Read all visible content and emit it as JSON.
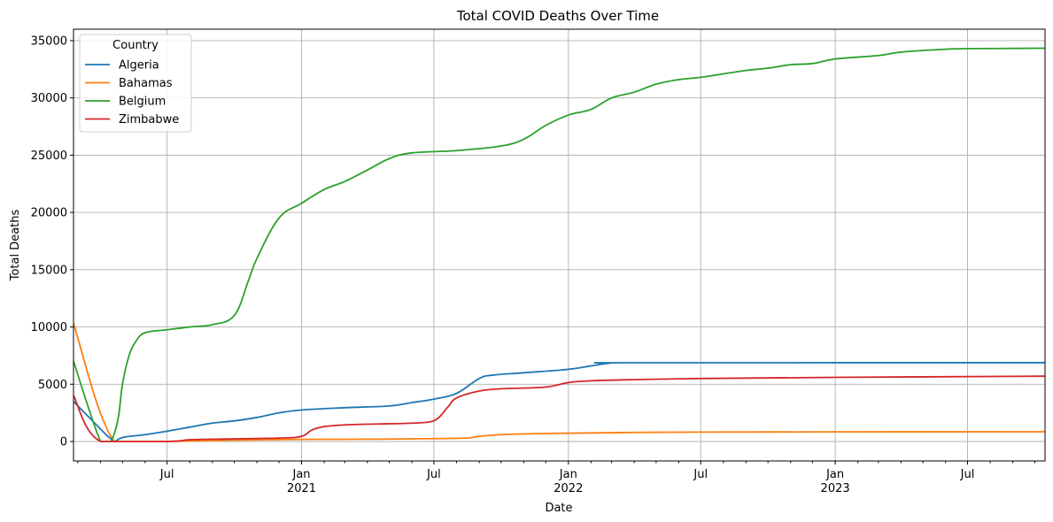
{
  "chart_data": {
    "type": "line",
    "title": "Total COVID Deaths Over Time",
    "xlabel": "Date",
    "ylabel": "Total Deaths",
    "legend": {
      "title": "Country",
      "placement": "top-left"
    },
    "grid": true,
    "xlim": [
      "2020-02-24",
      "2023-10-15"
    ],
    "ylim": [
      -1700,
      36000
    ],
    "y_ticks": [
      0,
      5000,
      10000,
      15000,
      20000,
      25000,
      30000,
      35000
    ],
    "y_tick_labels": [
      "0",
      "5000",
      "10000",
      "15000",
      "20000",
      "25000",
      "30000",
      "35000"
    ],
    "x_major_ticks": [
      {
        "date": "2020-07-01",
        "label": "Jul",
        "sublabel": ""
      },
      {
        "date": "2021-01-01",
        "label": "Jan",
        "sublabel": "2021"
      },
      {
        "date": "2021-07-01",
        "label": "Jul",
        "sublabel": ""
      },
      {
        "date": "2022-01-01",
        "label": "Jan",
        "sublabel": "2022"
      },
      {
        "date": "2022-07-01",
        "label": "Jul",
        "sublabel": ""
      },
      {
        "date": "2023-01-01",
        "label": "Jan",
        "sublabel": "2023"
      },
      {
        "date": "2023-07-01",
        "label": "Jul",
        "sublabel": ""
      }
    ],
    "x_grid_dates": [
      "2021-01-01",
      "2022-01-01",
      "2023-01-01"
    ],
    "x_minor_ticks": [
      "2020-03-01",
      "2020-04-01",
      "2020-05-01",
      "2020-06-01",
      "2020-08-01",
      "2020-09-01",
      "2020-10-01",
      "2020-11-01",
      "2020-12-01",
      "2021-02-01",
      "2021-03-01",
      "2021-04-01",
      "2021-05-01",
      "2021-06-01",
      "2021-08-01",
      "2021-09-01",
      "2021-10-01",
      "2021-11-01",
      "2021-12-01",
      "2022-02-01",
      "2022-03-01",
      "2022-04-01",
      "2022-05-01",
      "2022-06-01",
      "2022-08-01",
      "2022-09-01",
      "2022-10-01",
      "2022-11-01",
      "2022-12-01",
      "2023-02-01",
      "2023-03-01",
      "2023-04-01",
      "2023-05-01",
      "2023-06-01",
      "2023-08-01",
      "2023-09-01",
      "2023-10-01"
    ],
    "series": [
      {
        "name": "Algeria",
        "color": "#1f77b4",
        "points": [
          [
            "2020-02-24",
            3500
          ],
          [
            "2020-04-10",
            500
          ],
          [
            "2020-04-20",
            0
          ],
          [
            "2020-05-01",
            350
          ],
          [
            "2020-06-01",
            600
          ],
          [
            "2020-07-01",
            900
          ],
          [
            "2020-08-01",
            1250
          ],
          [
            "2020-09-01",
            1600
          ],
          [
            "2020-10-01",
            1800
          ],
          [
            "2020-11-01",
            2100
          ],
          [
            "2020-12-01",
            2500
          ],
          [
            "2021-01-01",
            2750
          ],
          [
            "2021-03-01",
            2950
          ],
          [
            "2021-05-01",
            3100
          ],
          [
            "2021-06-01",
            3400
          ],
          [
            "2021-07-01",
            3700
          ],
          [
            "2021-08-01",
            4200
          ],
          [
            "2021-09-01",
            5500
          ],
          [
            "2021-09-20",
            5800
          ],
          [
            "2021-11-01",
            6000
          ],
          [
            "2022-01-01",
            6300
          ],
          [
            "2022-02-01",
            6600
          ],
          [
            "2022-03-01",
            6850
          ],
          [
            "2022-04-01",
            6875
          ],
          [
            "2023-10-15",
            6880
          ]
        ]
      },
      {
        "name": "Bahamas",
        "color": "#ff7f0e",
        "points": [
          [
            "2020-02-24",
            10300
          ],
          [
            "2020-04-20",
            0
          ],
          [
            "2020-07-01",
            0
          ],
          [
            "2020-08-01",
            50
          ],
          [
            "2020-10-01",
            120
          ],
          [
            "2021-01-01",
            180
          ],
          [
            "2021-04-01",
            200
          ],
          [
            "2021-07-01",
            250
          ],
          [
            "2021-08-15",
            300
          ],
          [
            "2021-09-01",
            450
          ],
          [
            "2021-10-01",
            600
          ],
          [
            "2021-12-01",
            700
          ],
          [
            "2022-01-01",
            720
          ],
          [
            "2022-04-01",
            790
          ],
          [
            "2022-07-01",
            820
          ],
          [
            "2023-01-01",
            840
          ],
          [
            "2023-10-15",
            850
          ]
        ]
      },
      {
        "name": "Belgium",
        "color": "#2ca02c",
        "points": [
          [
            "2020-02-24",
            7000
          ],
          [
            "2020-04-01",
            0
          ],
          [
            "2020-04-15",
            0
          ],
          [
            "2020-04-25",
            2000
          ],
          [
            "2020-05-01",
            5000
          ],
          [
            "2020-05-10",
            7500
          ],
          [
            "2020-05-20",
            8800
          ],
          [
            "2020-06-01",
            9500
          ],
          [
            "2020-07-01",
            9750
          ],
          [
            "2020-08-01",
            10000
          ],
          [
            "2020-09-01",
            10200
          ],
          [
            "2020-10-01",
            11000
          ],
          [
            "2020-10-20",
            14000
          ],
          [
            "2020-11-01",
            16000
          ],
          [
            "2020-12-01",
            19500
          ],
          [
            "2021-01-01",
            20800
          ],
          [
            "2021-02-01",
            22000
          ],
          [
            "2021-03-01",
            22700
          ],
          [
            "2021-04-01",
            23700
          ],
          [
            "2021-05-01",
            24700
          ],
          [
            "2021-06-01",
            25200
          ],
          [
            "2021-08-01",
            25400
          ],
          [
            "2021-10-01",
            25800
          ],
          [
            "2021-11-01",
            26400
          ],
          [
            "2021-12-01",
            27600
          ],
          [
            "2022-01-01",
            28500
          ],
          [
            "2022-02-01",
            29000
          ],
          [
            "2022-03-01",
            30000
          ],
          [
            "2022-04-01",
            30500
          ],
          [
            "2022-05-01",
            31200
          ],
          [
            "2022-06-01",
            31600
          ],
          [
            "2022-07-01",
            31800
          ],
          [
            "2022-08-01",
            32100
          ],
          [
            "2022-09-01",
            32400
          ],
          [
            "2022-10-01",
            32600
          ],
          [
            "2022-11-01",
            32900
          ],
          [
            "2022-12-01",
            33000
          ],
          [
            "2023-01-01",
            33400
          ],
          [
            "2023-03-01",
            33700
          ],
          [
            "2023-04-01",
            34000
          ],
          [
            "2023-06-01",
            34250
          ],
          [
            "2023-07-01",
            34300
          ],
          [
            "2023-10-15",
            34340
          ]
        ]
      },
      {
        "name": "Zimbabwe",
        "color": "#d62728",
        "points": [
          [
            "2020-02-24",
            4000
          ],
          [
            "2020-04-01",
            0
          ],
          [
            "2020-07-01",
            0
          ],
          [
            "2020-08-01",
            150
          ],
          [
            "2020-09-01",
            200
          ],
          [
            "2020-12-01",
            300
          ],
          [
            "2021-01-01",
            450
          ],
          [
            "2021-01-15",
            1000
          ],
          [
            "2021-02-01",
            1300
          ],
          [
            "2021-03-01",
            1450
          ],
          [
            "2021-05-01",
            1550
          ],
          [
            "2021-06-01",
            1600
          ],
          [
            "2021-07-01",
            1800
          ],
          [
            "2021-07-20",
            3000
          ],
          [
            "2021-08-01",
            3800
          ],
          [
            "2021-09-01",
            4400
          ],
          [
            "2021-10-01",
            4600
          ],
          [
            "2021-12-01",
            4750
          ],
          [
            "2022-01-01",
            5150
          ],
          [
            "2022-02-01",
            5300
          ],
          [
            "2022-04-01",
            5400
          ],
          [
            "2022-07-01",
            5500
          ],
          [
            "2023-01-01",
            5600
          ],
          [
            "2023-10-15",
            5700
          ]
        ]
      }
    ]
  }
}
